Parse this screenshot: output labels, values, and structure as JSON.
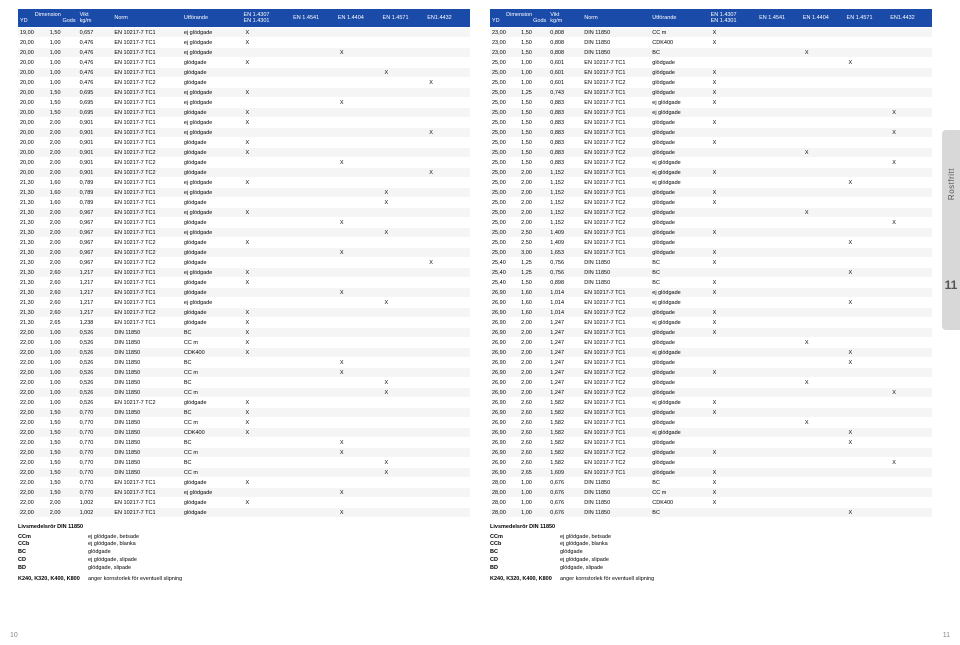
{
  "headers": {
    "dimension": "Dimension",
    "yd": "YD",
    "gods": "Gods",
    "vikt": "Vikt\nkg/m",
    "norm": "Norm",
    "utforande": "Utförande",
    "c14307": "EN 1.4307\nEN 1.4301",
    "c14541": "EN 1.4541",
    "c14404": "EN 1.4404",
    "c14571": "EN 1.4571",
    "c14432": "EN1.4432"
  },
  "left_rows": [
    [
      "19,00",
      "1,50",
      "0,657",
      "EN 10217-7 TC1",
      "ej glödgade",
      "X",
      "",
      "",
      "",
      ""
    ],
    [
      "20,00",
      "1,00",
      "0,476",
      "EN 10217-7 TC1",
      "ej glödgade",
      "X",
      "",
      "",
      "",
      ""
    ],
    [
      "20,00",
      "1,00",
      "0,476",
      "EN 10217-7 TC1",
      "ej glödgade",
      "",
      "",
      "X",
      "",
      ""
    ],
    [
      "20,00",
      "1,00",
      "0,476",
      "EN 10217-7 TC1",
      "glödgade",
      "X",
      "",
      "",
      "",
      ""
    ],
    [
      "20,00",
      "1,00",
      "0,476",
      "EN 10217-7 TC1",
      "glödgade",
      "",
      "",
      "",
      "X",
      ""
    ],
    [
      "20,00",
      "1,00",
      "0,476",
      "EN 10217-7 TC2",
      "glödgade",
      "",
      "",
      "",
      "",
      "X"
    ],
    [
      "20,00",
      "1,50",
      "0,695",
      "EN 10217-7 TC1",
      "ej glödgade",
      "X",
      "",
      "",
      "",
      ""
    ],
    [
      "20,00",
      "1,50",
      "0,695",
      "EN 10217-7 TC1",
      "ej glödgade",
      "",
      "",
      "X",
      "",
      ""
    ],
    [
      "20,00",
      "1,50",
      "0,695",
      "EN 10217-7 TC1",
      "glödgade",
      "X",
      "",
      "",
      "",
      ""
    ],
    [
      "20,00",
      "2,00",
      "0,901",
      "EN 10217-7 TC1",
      "ej glödgade",
      "X",
      "",
      "",
      "",
      ""
    ],
    [
      "20,00",
      "2,00",
      "0,901",
      "EN 10217-7 TC1",
      "ej glödgade",
      "",
      "",
      "",
      "",
      "X"
    ],
    [
      "20,00",
      "2,00",
      "0,901",
      "EN 10217-7 TC1",
      "glödgade",
      "X",
      "",
      "",
      "",
      ""
    ],
    [
      "20,00",
      "2,00",
      "0,901",
      "EN 10217-7 TC2",
      "glödgade",
      "X",
      "",
      "",
      "",
      ""
    ],
    [
      "20,00",
      "2,00",
      "0,901",
      "EN 10217-7 TC2",
      "glödgade",
      "",
      "",
      "X",
      "",
      ""
    ],
    [
      "20,00",
      "2,00",
      "0,901",
      "EN 10217-7 TC2",
      "glödgade",
      "",
      "",
      "",
      "",
      "X"
    ],
    [
      "21,30",
      "1,60",
      "0,789",
      "EN 10217-7 TC1",
      "ej glödgade",
      "X",
      "",
      "",
      "",
      ""
    ],
    [
      "21,30",
      "1,60",
      "0,789",
      "EN 10217-7 TC1",
      "ej glödgade",
      "",
      "",
      "",
      "X",
      ""
    ],
    [
      "21,30",
      "1,60",
      "0,789",
      "EN 10217-7 TC1",
      "glödgade",
      "",
      "",
      "",
      "X",
      ""
    ],
    [
      "21,30",
      "2,00",
      "0,967",
      "EN 10217-7 TC1",
      "ej glödgade",
      "X",
      "",
      "",
      "",
      ""
    ],
    [
      "21,30",
      "2,00",
      "0,967",
      "EN 10217-7 TC1",
      "glödgade",
      "",
      "",
      "X",
      "",
      ""
    ],
    [
      "21,30",
      "2,00",
      "0,967",
      "EN 10217-7 TC1",
      "ej glödgade",
      "",
      "",
      "",
      "X",
      ""
    ],
    [
      "21,30",
      "2,00",
      "0,967",
      "EN 10217-7 TC2",
      "glödgade",
      "X",
      "",
      "",
      "",
      ""
    ],
    [
      "21,30",
      "2,00",
      "0,967",
      "EN 10217-7 TC2",
      "glödgade",
      "",
      "",
      "X",
      "",
      ""
    ],
    [
      "21,30",
      "2,00",
      "0,967",
      "EN 10217-7 TC2",
      "glödgade",
      "",
      "",
      "",
      "",
      "X"
    ],
    [
      "21,30",
      "2,60",
      "1,217",
      "EN 10217-7 TC1",
      "ej glödgade",
      "X",
      "",
      "",
      "",
      ""
    ],
    [
      "21,30",
      "2,60",
      "1,217",
      "EN 10217-7 TC1",
      "glödgade",
      "X",
      "",
      "",
      "",
      ""
    ],
    [
      "21,30",
      "2,60",
      "1,217",
      "EN 10217-7 TC1",
      "glödgade",
      "",
      "",
      "X",
      "",
      ""
    ],
    [
      "21,30",
      "2,60",
      "1,217",
      "EN 10217-7 TC1",
      "ej glödgade",
      "",
      "",
      "",
      "X",
      ""
    ],
    [
      "21,30",
      "2,60",
      "1,217",
      "EN 10217-7 TC2",
      "glödgade",
      "X",
      "",
      "",
      "",
      ""
    ],
    [
      "21,30",
      "2,65",
      "1,238",
      "EN 10217-7 TC1",
      "glödgade",
      "X",
      "",
      "",
      "",
      ""
    ],
    [
      "22,00",
      "1,00",
      "0,526",
      "DIN 11850",
      "BC",
      "X",
      "",
      "",
      "",
      ""
    ],
    [
      "22,00",
      "1,00",
      "0,526",
      "DIN 11850",
      "CC m",
      "X",
      "",
      "",
      "",
      ""
    ],
    [
      "22,00",
      "1,00",
      "0,526",
      "DIN 11850",
      "CDK400",
      "X",
      "",
      "",
      "",
      ""
    ],
    [
      "22,00",
      "1,00",
      "0,526",
      "DIN 11850",
      "BC",
      "",
      "",
      "X",
      "",
      ""
    ],
    [
      "22,00",
      "1,00",
      "0,526",
      "DIN 11850",
      "CC m",
      "",
      "",
      "X",
      "",
      ""
    ],
    [
      "22,00",
      "1,00",
      "0,526",
      "DIN 11850",
      "BC",
      "",
      "",
      "",
      "X",
      ""
    ],
    [
      "22,00",
      "1,00",
      "0,526",
      "DIN 11850",
      "CC m",
      "",
      "",
      "",
      "X",
      ""
    ],
    [
      "22,00",
      "1,00",
      "0,526",
      "EN 10217-7 TC2",
      "glödgade",
      "X",
      "",
      "",
      "",
      ""
    ],
    [
      "22,00",
      "1,50",
      "0,770",
      "DIN 11850",
      "BC",
      "X",
      "",
      "",
      "",
      ""
    ],
    [
      "22,00",
      "1,50",
      "0,770",
      "DIN 11850",
      "CC m",
      "X",
      "",
      "",
      "",
      ""
    ],
    [
      "22,00",
      "1,50",
      "0,770",
      "DIN 11850",
      "CDK400",
      "X",
      "",
      "",
      "",
      ""
    ],
    [
      "22,00",
      "1,50",
      "0,770",
      "DIN 11850",
      "BC",
      "",
      "",
      "X",
      "",
      ""
    ],
    [
      "22,00",
      "1,50",
      "0,770",
      "DIN 11850",
      "CC m",
      "",
      "",
      "X",
      "",
      ""
    ],
    [
      "22,00",
      "1,50",
      "0,770",
      "DIN 11850",
      "BC",
      "",
      "",
      "",
      "X",
      ""
    ],
    [
      "22,00",
      "1,50",
      "0,770",
      "DIN 11850",
      "CC m",
      "",
      "",
      "",
      "X",
      ""
    ],
    [
      "22,00",
      "1,50",
      "0,770",
      "EN 10217-7 TC1",
      "glödgade",
      "X",
      "",
      "",
      "",
      ""
    ],
    [
      "22,00",
      "1,50",
      "0,770",
      "EN 10217-7 TC1",
      "ej glödgade",
      "",
      "",
      "X",
      "",
      ""
    ],
    [
      "22,00",
      "2,00",
      "1,002",
      "EN 10217-7 TC1",
      "glödgade",
      "X",
      "",
      "",
      "",
      ""
    ],
    [
      "22,00",
      "2,00",
      "1,002",
      "EN 10217-7 TC1",
      "glödgade",
      "",
      "",
      "X",
      "",
      ""
    ]
  ],
  "right_rows": [
    [
      "23,00",
      "1,50",
      "0,808",
      "DIN 11850",
      "CC m",
      "X",
      "",
      "",
      "",
      ""
    ],
    [
      "23,00",
      "1,50",
      "0,808",
      "DIN 11850",
      "CDK400",
      "X",
      "",
      "",
      "",
      ""
    ],
    [
      "23,00",
      "1,50",
      "0,808",
      "DIN 11850",
      "BC",
      "",
      "",
      "X",
      "",
      ""
    ],
    [
      "25,00",
      "1,00",
      "0,601",
      "EN 10217-7 TC1",
      "glödgade",
      "",
      "",
      "",
      "X",
      ""
    ],
    [
      "25,00",
      "1,00",
      "0,601",
      "EN 10217-7 TC1",
      "glödgade",
      "X",
      "",
      "",
      "",
      ""
    ],
    [
      "25,00",
      "1,00",
      "0,601",
      "EN 10217-7 TC2",
      "glödgade",
      "X",
      "",
      "",
      "",
      ""
    ],
    [
      "25,00",
      "1,25",
      "0,743",
      "EN 10217-7 TC1",
      "glödgade",
      "X",
      "",
      "",
      "",
      ""
    ],
    [
      "25,00",
      "1,50",
      "0,883",
      "EN 10217-7 TC1",
      "ej glödgade",
      "X",
      "",
      "",
      "",
      ""
    ],
    [
      "25,00",
      "1,50",
      "0,883",
      "EN 10217-7 TC1",
      "ej glödgade",
      "",
      "",
      "",
      "",
      "X"
    ],
    [
      "25,00",
      "1,50",
      "0,883",
      "EN 10217-7 TC1",
      "glödgade",
      "X",
      "",
      "",
      "",
      ""
    ],
    [
      "25,00",
      "1,50",
      "0,883",
      "EN 10217-7 TC1",
      "glödgade",
      "",
      "",
      "",
      "",
      "X"
    ],
    [
      "25,00",
      "1,50",
      "0,883",
      "EN 10217-7 TC2",
      "glödgade",
      "X",
      "",
      "",
      "",
      ""
    ],
    [
      "25,00",
      "1,50",
      "0,883",
      "EN 10217-7 TC2",
      "glödgade",
      "",
      "",
      "X",
      "",
      ""
    ],
    [
      "25,00",
      "1,50",
      "0,883",
      "EN 10217-7 TC2",
      "ej glödgade",
      "",
      "",
      "",
      "",
      "X"
    ],
    [
      "25,00",
      "2,00",
      "1,152",
      "EN 10217-7 TC1",
      "ej glödgade",
      "X",
      "",
      "",
      "",
      ""
    ],
    [
      "25,00",
      "2,00",
      "1,152",
      "EN 10217-7 TC1",
      "ej glödgade",
      "",
      "",
      "",
      "X",
      ""
    ],
    [
      "25,00",
      "2,00",
      "1,152",
      "EN 10217-7 TC1",
      "glödgade",
      "X",
      "",
      "",
      "",
      ""
    ],
    [
      "25,00",
      "2,00",
      "1,152",
      "EN 10217-7 TC2",
      "glödgade",
      "X",
      "",
      "",
      "",
      ""
    ],
    [
      "25,00",
      "2,00",
      "1,152",
      "EN 10217-7 TC2",
      "glödgade",
      "",
      "",
      "X",
      "",
      ""
    ],
    [
      "25,00",
      "2,00",
      "1,152",
      "EN 10217-7 TC2",
      "glödgade",
      "",
      "",
      "",
      "",
      "X"
    ],
    [
      "25,00",
      "2,50",
      "1,409",
      "EN 10217-7 TC1",
      "glödgade",
      "X",
      "",
      "",
      "",
      ""
    ],
    [
      "25,00",
      "2,50",
      "1,409",
      "EN 10217-7 TC1",
      "glödgade",
      "",
      "",
      "",
      "X",
      ""
    ],
    [
      "25,00",
      "3,00",
      "1,653",
      "EN 10217-7 TC1",
      "glödgade",
      "X",
      "",
      "",
      "",
      ""
    ],
    [
      "25,40",
      "1,25",
      "0,756",
      "DIN 11850",
      "BC",
      "X",
      "",
      "",
      "",
      ""
    ],
    [
      "25,40",
      "1,25",
      "0,756",
      "DIN 11850",
      "BC",
      "",
      "",
      "",
      "X",
      ""
    ],
    [
      "25,40",
      "1,50",
      "0,898",
      "DIN 11850",
      "BC",
      "X",
      "",
      "",
      "",
      ""
    ],
    [
      "26,90",
      "1,60",
      "1,014",
      "EN 10217-7 TC1",
      "ej glödgade",
      "X",
      "",
      "",
      "",
      ""
    ],
    [
      "26,90",
      "1,60",
      "1,014",
      "EN 10217-7 TC1",
      "ej glödgade",
      "",
      "",
      "",
      "X",
      ""
    ],
    [
      "26,90",
      "1,60",
      "1,014",
      "EN 10217-7 TC2",
      "glödgade",
      "X",
      "",
      "",
      "",
      ""
    ],
    [
      "26,90",
      "2,00",
      "1,247",
      "EN 10217-7 TC1",
      "ej glödgade",
      "X",
      "",
      "",
      "",
      ""
    ],
    [
      "26,90",
      "2,00",
      "1,247",
      "EN 10217-7 TC1",
      "glödgade",
      "X",
      "",
      "",
      "",
      ""
    ],
    [
      "26,90",
      "2,00",
      "1,247",
      "EN 10217-7 TC1",
      "glödgade",
      "",
      "",
      "X",
      "",
      ""
    ],
    [
      "26,90",
      "2,00",
      "1,247",
      "EN 10217-7 TC1",
      "ej glödgade",
      "",
      "",
      "",
      "X",
      ""
    ],
    [
      "26,90",
      "2,00",
      "1,247",
      "EN 10217-7 TC1",
      "glödgade",
      "",
      "",
      "",
      "X",
      ""
    ],
    [
      "26,90",
      "2,00",
      "1,247",
      "EN 10217-7 TC2",
      "glödgade",
      "X",
      "",
      "",
      "",
      ""
    ],
    [
      "26,90",
      "2,00",
      "1,247",
      "EN 10217-7 TC2",
      "glödgade",
      "",
      "",
      "X",
      "",
      ""
    ],
    [
      "26,90",
      "2,00",
      "1,247",
      "EN 10217-7 TC2",
      "glödgade",
      "",
      "",
      "",
      "",
      "X"
    ],
    [
      "26,90",
      "2,60",
      "1,582",
      "EN 10217-7 TC1",
      "ej glödgade",
      "X",
      "",
      "",
      "",
      ""
    ],
    [
      "26,90",
      "2,60",
      "1,582",
      "EN 10217-7 TC1",
      "glödgade",
      "X",
      "",
      "",
      "",
      ""
    ],
    [
      "26,90",
      "2,60",
      "1,582",
      "EN 10217-7 TC1",
      "glödgade",
      "",
      "",
      "X",
      "",
      ""
    ],
    [
      "26,90",
      "2,60",
      "1,582",
      "EN 10217-7 TC1",
      "ej glödgade",
      "",
      "",
      "",
      "X",
      ""
    ],
    [
      "26,90",
      "2,60",
      "1,582",
      "EN 10217-7 TC1",
      "glödgade",
      "",
      "",
      "",
      "X",
      ""
    ],
    [
      "26,90",
      "2,60",
      "1,582",
      "EN 10217-7 TC2",
      "glödgade",
      "X",
      "",
      "",
      "",
      ""
    ],
    [
      "26,90",
      "2,60",
      "1,582",
      "EN 10217-7 TC2",
      "glödgade",
      "",
      "",
      "",
      "",
      "X"
    ],
    [
      "26,90",
      "2,65",
      "1,609",
      "EN 10217-7 TC1",
      "glödgade",
      "X",
      "",
      "",
      "",
      ""
    ],
    [
      "28,00",
      "1,00",
      "0,676",
      "DIN 11850",
      "BC",
      "X",
      "",
      "",
      "",
      ""
    ],
    [
      "28,00",
      "1,00",
      "0,676",
      "DIN 11850",
      "CC m",
      "X",
      "",
      "",
      "",
      ""
    ],
    [
      "28,00",
      "1,00",
      "0,676",
      "DIN 11850",
      "CDK400",
      "X",
      "",
      "",
      "",
      ""
    ],
    [
      "28,00",
      "1,00",
      "0,676",
      "DIN 11850",
      "BC",
      "",
      "",
      "",
      "X",
      ""
    ]
  ],
  "footer": {
    "title": "Livsmedelsrör DIN 11850",
    "legend": [
      [
        "CCm",
        "ej glödgade, betsade"
      ],
      [
        "CCb",
        "ej glödgade, blanka"
      ],
      [
        "BC",
        "glödgade"
      ],
      [
        "CD",
        "ej glödgade, slipade"
      ],
      [
        "BD",
        "glödgade, slipade"
      ]
    ],
    "note_key": "K240, K320, K400, K800",
    "note_val": "anger kornstorlek för eventuell slipning"
  },
  "page_left_num": "10",
  "page_right_num": "11",
  "sidetab": {
    "label": "Rostfritt",
    "num": "11"
  }
}
